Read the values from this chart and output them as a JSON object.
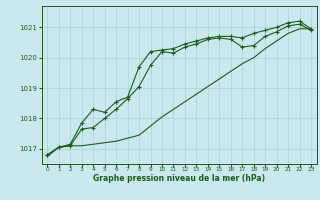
{
  "xlabel": "Graphe pression niveau de la mer (hPa)",
  "bg_color": "#cce8ef",
  "grid_color": "#aacfd8",
  "line_color": "#1a5c1a",
  "xlim": [
    -0.5,
    23.5
  ],
  "ylim": [
    1016.5,
    1021.7
  ],
  "yticks": [
    1017,
    1018,
    1019,
    1020,
    1021
  ],
  "xticks": [
    0,
    1,
    2,
    3,
    4,
    5,
    6,
    7,
    8,
    9,
    10,
    11,
    12,
    13,
    14,
    15,
    16,
    17,
    18,
    19,
    20,
    21,
    22,
    23
  ],
  "series1_x": [
    0,
    1,
    2,
    3,
    4,
    5,
    6,
    7,
    8,
    9,
    10,
    11,
    12,
    13,
    14,
    15,
    16,
    17,
    18,
    19,
    20,
    21,
    22,
    23
  ],
  "series1_y": [
    1016.8,
    1017.05,
    1017.1,
    1017.65,
    1017.7,
    1018.0,
    1018.3,
    1018.65,
    1019.05,
    1019.75,
    1020.2,
    1020.15,
    1020.35,
    1020.45,
    1020.6,
    1020.65,
    1020.6,
    1020.35,
    1020.4,
    1020.7,
    1020.85,
    1021.05,
    1021.1,
    1020.9
  ],
  "series2_x": [
    0,
    1,
    2,
    3,
    4,
    5,
    6,
    7,
    8,
    9,
    10,
    11,
    12,
    13,
    14,
    15,
    16,
    17,
    18,
    19,
    20,
    21,
    22,
    23
  ],
  "series2_y": [
    1016.8,
    1017.05,
    1017.15,
    1017.85,
    1018.3,
    1018.2,
    1018.55,
    1018.7,
    1019.7,
    1020.2,
    1020.25,
    1020.3,
    1020.45,
    1020.55,
    1020.65,
    1020.7,
    1020.7,
    1020.65,
    1020.8,
    1020.9,
    1021.0,
    1021.15,
    1021.2,
    1020.95
  ],
  "series3_x": [
    0,
    1,
    2,
    3,
    4,
    5,
    6,
    7,
    8,
    9,
    10,
    11,
    12,
    13,
    14,
    15,
    16,
    17,
    18,
    19,
    20,
    21,
    22,
    23
  ],
  "series3_y": [
    1016.75,
    1017.05,
    1017.1,
    1017.1,
    1017.15,
    1017.2,
    1017.25,
    1017.35,
    1017.45,
    1017.75,
    1018.05,
    1018.3,
    1018.55,
    1018.8,
    1019.05,
    1019.3,
    1019.55,
    1019.8,
    1020.0,
    1020.3,
    1020.55,
    1020.8,
    1020.95,
    1020.95
  ]
}
